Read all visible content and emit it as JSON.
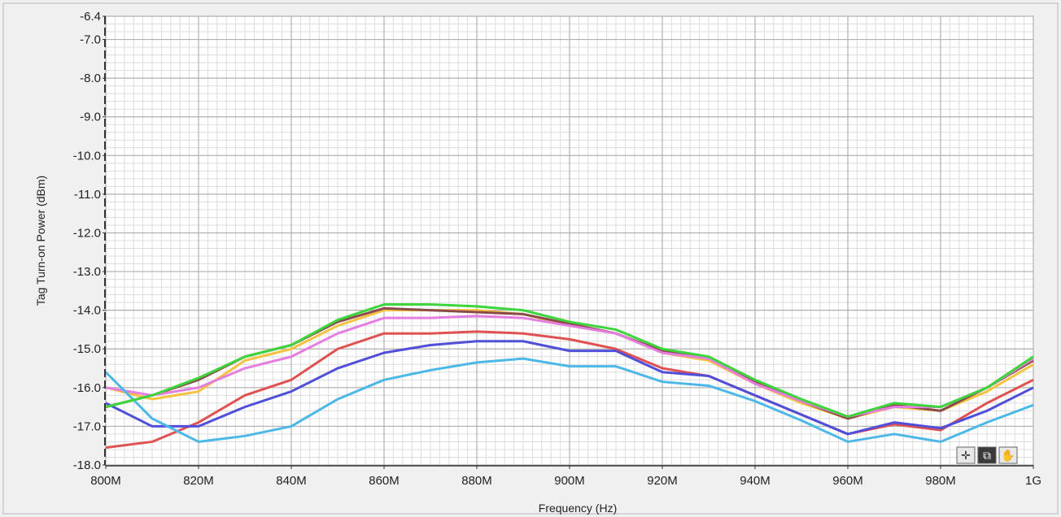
{
  "chart_data": {
    "type": "line",
    "xlabel": "Frequency (Hz)",
    "ylabel": "Tag Turn-on Power (dBm)",
    "xlim": [
      800,
      1000
    ],
    "ylim": [
      -18.0,
      -6.4
    ],
    "grid": true,
    "x": [
      800,
      810,
      820,
      830,
      840,
      850,
      860,
      870,
      880,
      890,
      900,
      910,
      920,
      930,
      940,
      950,
      960,
      970,
      980,
      990,
      1000
    ],
    "x_tick_values": [
      800,
      820,
      840,
      860,
      880,
      900,
      920,
      940,
      960,
      980,
      1000
    ],
    "x_tick_labels": [
      "800M",
      "820M",
      "840M",
      "860M",
      "880M",
      "900M",
      "920M",
      "940M",
      "960M",
      "980M",
      "1G"
    ],
    "y_tick_values": [
      -6.4,
      -7.0,
      -8.0,
      -9.0,
      -10.0,
      -11.0,
      -12.0,
      -13.0,
      -14.0,
      -15.0,
      -16.0,
      -17.0,
      -18.0
    ],
    "y_tick_labels": [
      "-6.4",
      "-7.0",
      "-8.0",
      "-9.0",
      "-10.0",
      "-11.0",
      "-12.0",
      "-13.0",
      "-14.0",
      "-15.0",
      "-16.0",
      "-17.0",
      "-18.0"
    ],
    "series": [
      {
        "color": "#f5c242",
        "values": [
          -16.0,
          -16.3,
          -16.1,
          -15.3,
          -15.0,
          -14.4,
          -14.0,
          -14.0,
          -14.0,
          -14.1,
          -14.4,
          -14.6,
          -15.1,
          -15.3,
          -15.9,
          -16.4,
          -16.8,
          -16.5,
          -16.6,
          -16.1,
          -15.4
        ]
      },
      {
        "color": "#8a4a4a",
        "values": [
          -16.5,
          -16.2,
          -15.8,
          -15.2,
          -14.9,
          -14.3,
          -13.95,
          -14.0,
          -14.05,
          -14.1,
          -14.35,
          -14.6,
          -15.05,
          -15.25,
          -15.85,
          -16.35,
          -16.8,
          -16.45,
          -16.6,
          -16.0,
          -15.3
        ]
      },
      {
        "color": "#e67de0",
        "values": [
          -16.0,
          -16.2,
          -16.0,
          -15.5,
          -15.2,
          -14.6,
          -14.2,
          -14.2,
          -14.15,
          -14.2,
          -14.4,
          -14.6,
          -15.1,
          -15.25,
          -15.9,
          -16.35,
          -16.75,
          -16.5,
          -16.5,
          -16.0,
          -15.25
        ]
      },
      {
        "color": "#e05252",
        "values": [
          -17.55,
          -17.4,
          -16.9,
          -16.2,
          -15.8,
          -15.0,
          -14.6,
          -14.6,
          -14.55,
          -14.6,
          -14.75,
          -15.0,
          -15.5,
          -15.7,
          -16.2,
          -16.7,
          -17.2,
          -16.95,
          -17.1,
          -16.4,
          -15.8
        ]
      },
      {
        "color": "#4f4fd9",
        "values": [
          -16.4,
          -17.0,
          -17.0,
          -16.5,
          -16.1,
          -15.5,
          -15.1,
          -14.9,
          -14.8,
          -14.8,
          -15.05,
          -15.05,
          -15.6,
          -15.7,
          -16.2,
          -16.7,
          -17.2,
          -16.9,
          -17.05,
          -16.6,
          -16.0
        ]
      },
      {
        "color": "#4cb8e8",
        "values": [
          -15.6,
          -16.8,
          -17.4,
          -17.25,
          -17.0,
          -16.3,
          -15.8,
          -15.55,
          -15.35,
          -15.25,
          -15.45,
          -15.45,
          -15.85,
          -15.95,
          -16.35,
          -16.85,
          -17.4,
          -17.2,
          -17.4,
          -16.9,
          -16.45
        ]
      },
      {
        "color": "#3cd63c",
        "values": [
          -16.5,
          -16.2,
          -15.75,
          -15.2,
          -14.9,
          -14.25,
          -13.85,
          -13.85,
          -13.9,
          -14.0,
          -14.3,
          -14.5,
          -15.0,
          -15.2,
          -15.8,
          -16.3,
          -16.75,
          -16.4,
          -16.5,
          -16.0,
          -15.2
        ]
      }
    ]
  },
  "graph_palette": {
    "tools": [
      {
        "name": "cursor-mover-icon",
        "glyph": "✛"
      },
      {
        "name": "zoom-icon",
        "glyph": "⧉"
      },
      {
        "name": "pan-hand-icon",
        "glyph": "✋"
      }
    ]
  }
}
